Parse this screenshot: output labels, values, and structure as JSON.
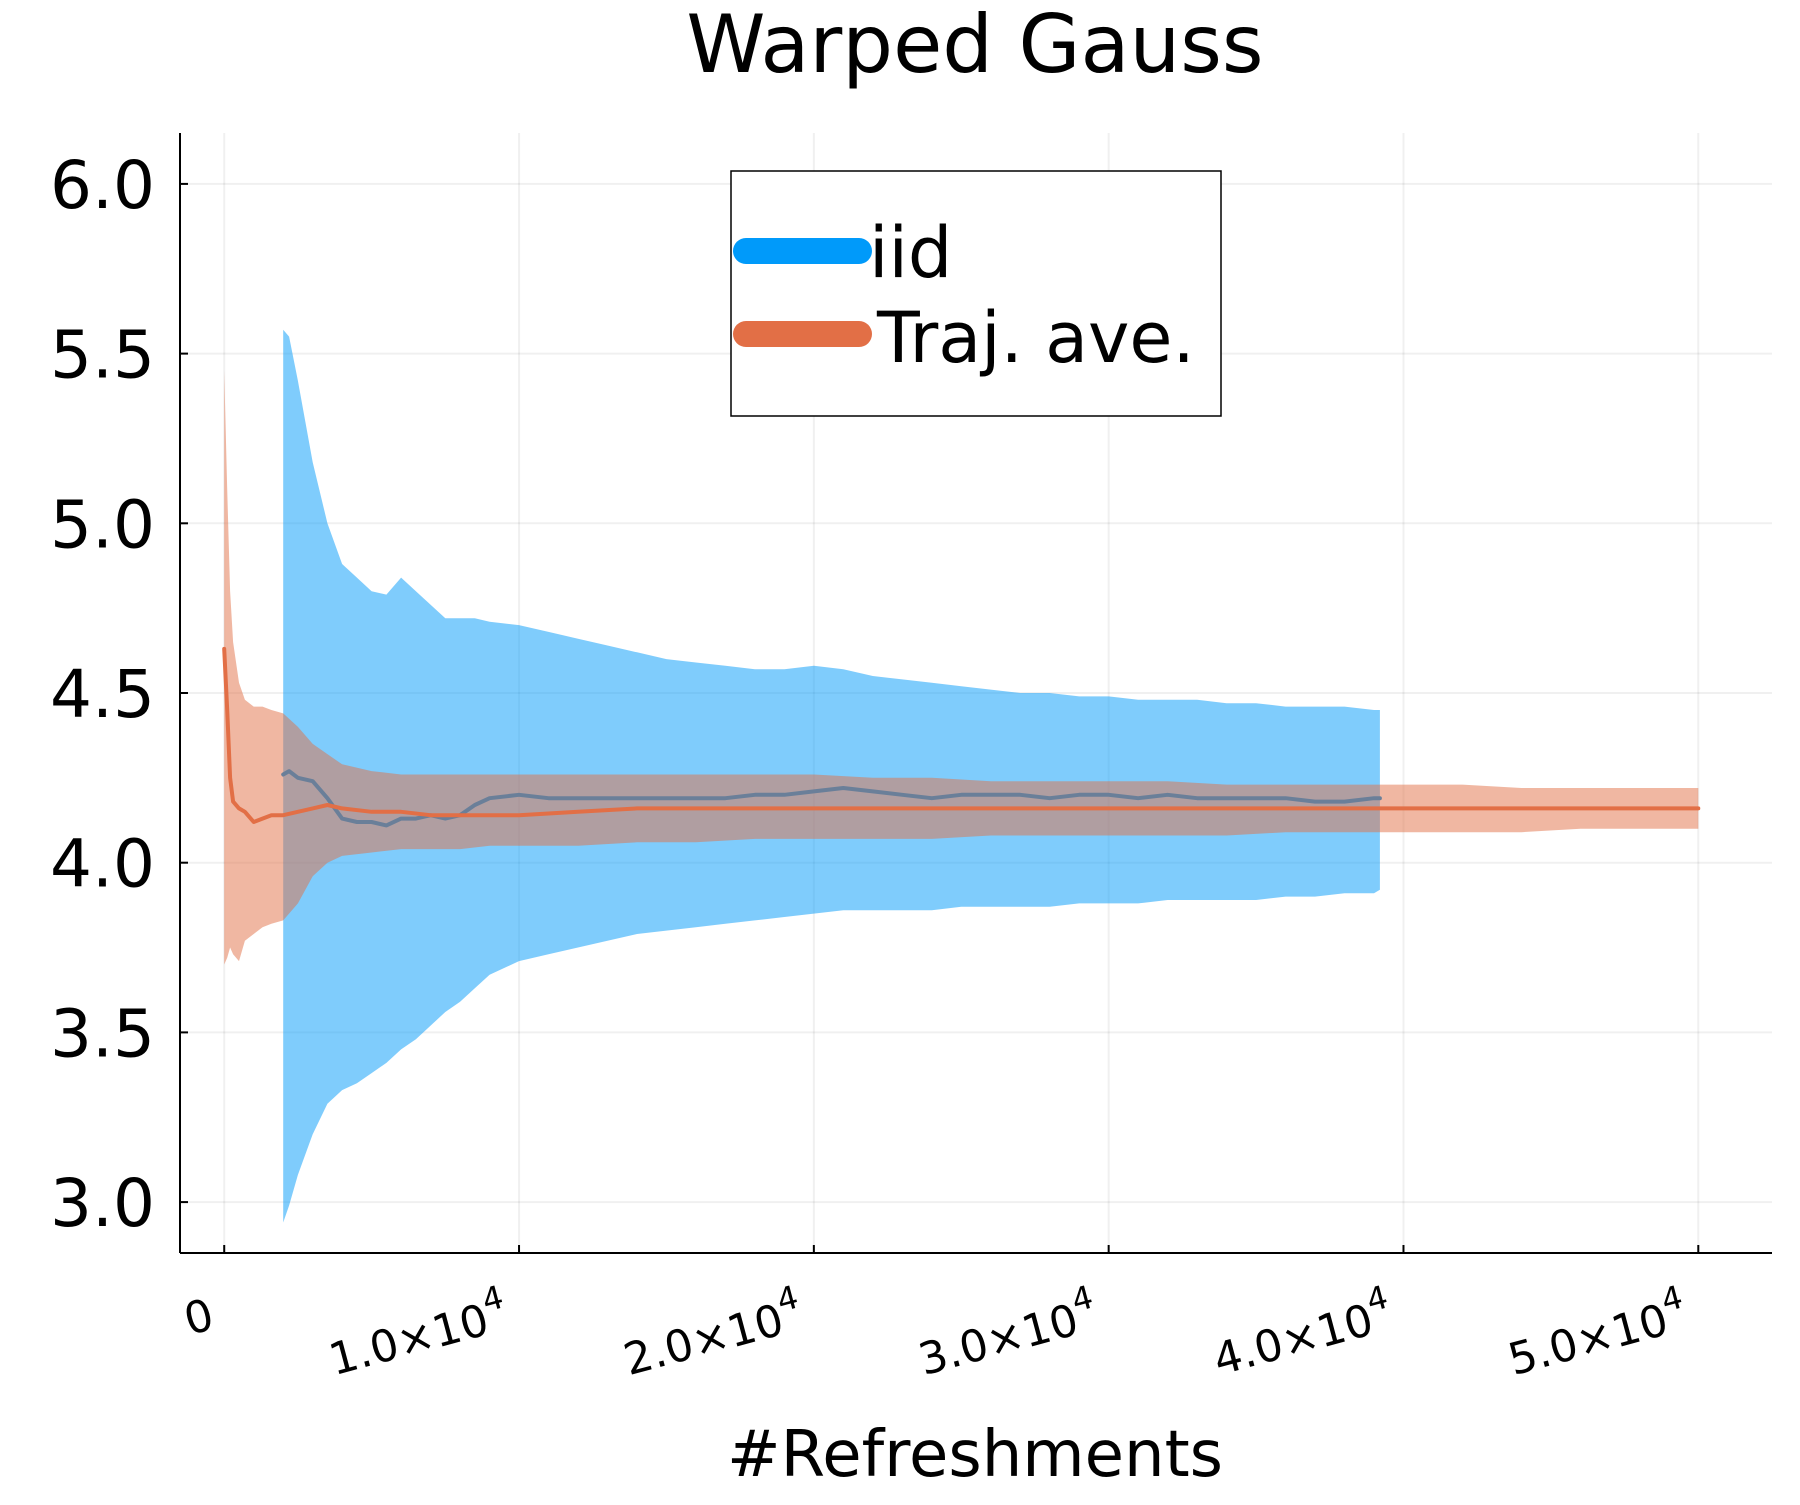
{
  "colors": {
    "iid": "#009AFA",
    "traj": "#E26F46",
    "background": "#FFFFFF",
    "text": "#000000"
  },
  "chart_data": {
    "type": "line",
    "title": "Warped Gauss",
    "xlabel": "#Refreshments",
    "ylabel": "",
    "xlim": [
      -1500,
      52500
    ],
    "ylim": [
      2.85,
      6.15
    ],
    "grid": true,
    "legend_position": "top-center",
    "x_ticks": [
      {
        "value": 0,
        "label": "0",
        "sup": ""
      },
      {
        "value": 10000,
        "label": "1.0×10",
        "sup": "4"
      },
      {
        "value": 20000,
        "label": "2.0×10",
        "sup": "4"
      },
      {
        "value": 30000,
        "label": "3.0×10",
        "sup": "4"
      },
      {
        "value": 40000,
        "label": "4.0×10",
        "sup": "4"
      },
      {
        "value": 50000,
        "label": "5.0×10",
        "sup": "4"
      }
    ],
    "y_ticks": [
      {
        "value": 3.0,
        "label": "3.0"
      },
      {
        "value": 3.5,
        "label": "3.5"
      },
      {
        "value": 4.0,
        "label": "4.0"
      },
      {
        "value": 4.5,
        "label": "4.5"
      },
      {
        "value": 5.0,
        "label": "5.0"
      },
      {
        "value": 5.5,
        "label": "5.5"
      },
      {
        "value": 6.0,
        "label": "6.0"
      }
    ],
    "series": [
      {
        "name": "iid",
        "color": "#009AFA",
        "x": [
          2000,
          2200,
          2500,
          3000,
          3500,
          4000,
          4500,
          5000,
          5500,
          6000,
          6500,
          7000,
          7500,
          8000,
          8500,
          9000,
          10000,
          11000,
          12000,
          13000,
          14000,
          15000,
          16000,
          17000,
          18000,
          19000,
          20000,
          21000,
          22000,
          23000,
          24000,
          25000,
          26000,
          27000,
          28000,
          29000,
          30000,
          31000,
          32000,
          33000,
          34000,
          35000,
          36000,
          37000,
          38000,
          39000,
          39200
        ],
        "y": [
          4.26,
          4.27,
          4.25,
          4.24,
          4.19,
          4.13,
          4.12,
          4.12,
          4.11,
          4.13,
          4.13,
          4.14,
          4.13,
          4.14,
          4.17,
          4.19,
          4.2,
          4.19,
          4.19,
          4.19,
          4.19,
          4.19,
          4.19,
          4.19,
          4.2,
          4.2,
          4.21,
          4.22,
          4.21,
          4.2,
          4.19,
          4.2,
          4.2,
          4.2,
          4.19,
          4.2,
          4.2,
          4.19,
          4.2,
          4.19,
          4.19,
          4.19,
          4.19,
          4.18,
          4.18,
          4.19,
          4.19
        ],
        "upper": [
          5.57,
          5.55,
          5.42,
          5.18,
          5.0,
          4.88,
          4.84,
          4.8,
          4.79,
          4.84,
          4.8,
          4.76,
          4.72,
          4.72,
          4.72,
          4.71,
          4.7,
          4.68,
          4.66,
          4.64,
          4.62,
          4.6,
          4.59,
          4.58,
          4.57,
          4.57,
          4.58,
          4.57,
          4.55,
          4.54,
          4.53,
          4.52,
          4.51,
          4.5,
          4.5,
          4.49,
          4.49,
          4.48,
          4.48,
          4.48,
          4.47,
          4.47,
          4.46,
          4.46,
          4.46,
          4.45,
          4.45
        ],
        "lower": [
          2.94,
          2.99,
          3.08,
          3.2,
          3.29,
          3.33,
          3.35,
          3.38,
          3.41,
          3.45,
          3.48,
          3.52,
          3.56,
          3.59,
          3.63,
          3.67,
          3.71,
          3.73,
          3.75,
          3.77,
          3.79,
          3.8,
          3.81,
          3.82,
          3.83,
          3.84,
          3.85,
          3.86,
          3.86,
          3.86,
          3.86,
          3.87,
          3.87,
          3.87,
          3.87,
          3.88,
          3.88,
          3.88,
          3.89,
          3.89,
          3.89,
          3.89,
          3.9,
          3.9,
          3.91,
          3.91,
          3.92
        ]
      },
      {
        "name": "Traj. ave.",
        "color": "#E26F46",
        "x": [
          0,
          100,
          200,
          300,
          500,
          700,
          1000,
          1300,
          1600,
          2000,
          2500,
          3000,
          3500,
          4000,
          5000,
          6000,
          7000,
          8000,
          9000,
          10000,
          12000,
          14000,
          16000,
          18000,
          20000,
          22000,
          24000,
          26000,
          28000,
          30000,
          32000,
          34000,
          36000,
          38000,
          40000,
          42000,
          44000,
          46000,
          48000,
          50000
        ],
        "y": [
          4.63,
          4.45,
          4.25,
          4.18,
          4.16,
          4.15,
          4.12,
          4.13,
          4.14,
          4.14,
          4.15,
          4.16,
          4.17,
          4.16,
          4.15,
          4.15,
          4.14,
          4.14,
          4.14,
          4.14,
          4.15,
          4.16,
          4.16,
          4.16,
          4.16,
          4.16,
          4.16,
          4.16,
          4.16,
          4.16,
          4.16,
          4.16,
          4.16,
          4.16,
          4.16,
          4.16,
          4.16,
          4.16,
          4.16,
          4.16
        ],
        "upper": [
          5.45,
          5.1,
          4.8,
          4.65,
          4.53,
          4.48,
          4.46,
          4.46,
          4.45,
          4.44,
          4.4,
          4.35,
          4.32,
          4.29,
          4.27,
          4.26,
          4.26,
          4.26,
          4.26,
          4.26,
          4.26,
          4.26,
          4.26,
          4.26,
          4.26,
          4.25,
          4.25,
          4.24,
          4.24,
          4.24,
          4.24,
          4.23,
          4.23,
          4.23,
          4.23,
          4.23,
          4.22,
          4.22,
          4.22,
          4.22
        ],
        "lower": [
          3.7,
          3.72,
          3.75,
          3.73,
          3.71,
          3.77,
          3.79,
          3.81,
          3.82,
          3.83,
          3.88,
          3.96,
          4.0,
          4.02,
          4.03,
          4.04,
          4.04,
          4.04,
          4.05,
          4.05,
          4.05,
          4.06,
          4.06,
          4.07,
          4.07,
          4.07,
          4.07,
          4.08,
          4.08,
          4.08,
          4.08,
          4.08,
          4.09,
          4.09,
          4.09,
          4.09,
          4.09,
          4.1,
          4.1,
          4.1
        ]
      }
    ]
  }
}
